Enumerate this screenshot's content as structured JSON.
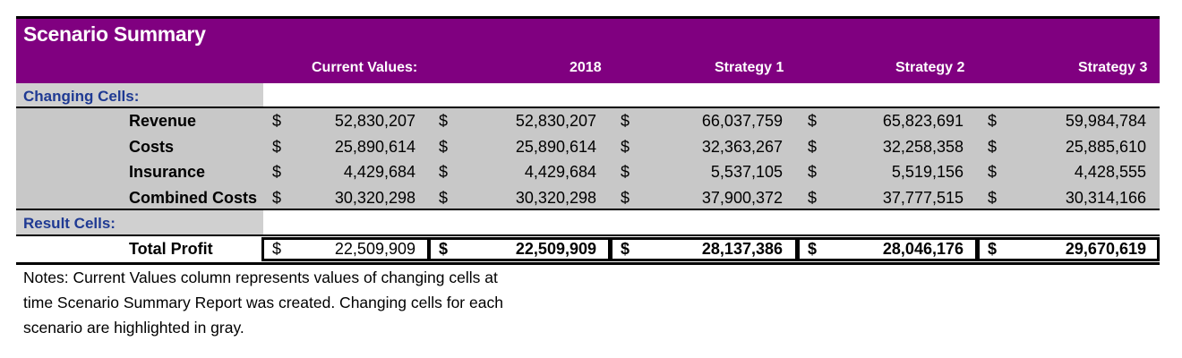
{
  "title": "Scenario Summary",
  "columns": [
    "Current Values:",
    "2018",
    "Strategy 1",
    "Strategy 2",
    "Strategy 3"
  ],
  "sections": {
    "changing_label": "Changing Cells:",
    "result_label": "Result Cells:"
  },
  "currency_symbol": "$",
  "changing_rows": [
    {
      "label": "Revenue",
      "values": [
        "52,830,207",
        "52,830,207",
        "66,037,759",
        "65,823,691",
        "59,984,784"
      ]
    },
    {
      "label": "Costs",
      "values": [
        "25,890,614",
        "25,890,614",
        "32,363,267",
        "32,258,358",
        "25,885,610"
      ]
    },
    {
      "label": "Insurance",
      "values": [
        "4,429,684",
        "4,429,684",
        "5,537,105",
        "5,519,156",
        "4,428,555"
      ]
    },
    {
      "label": "Combined Costs",
      "values": [
        "30,320,298",
        "30,320,298",
        "37,900,372",
        "37,777,515",
        "30,314,166"
      ]
    }
  ],
  "result_rows": [
    {
      "label": "Total Profit",
      "values": [
        "22,509,909",
        "22,509,909",
        "28,137,386",
        "28,046,176",
        "29,670,619"
      ]
    }
  ],
  "notes": [
    "Notes:  Current Values column represents values of changing cells at",
    "time Scenario Summary Report was created.  Changing cells for each",
    "scenario are highlighted in gray."
  ],
  "colors": {
    "header_bg": "#800080",
    "section_text": "#1f3a93",
    "gray": "#c8c8c8"
  }
}
